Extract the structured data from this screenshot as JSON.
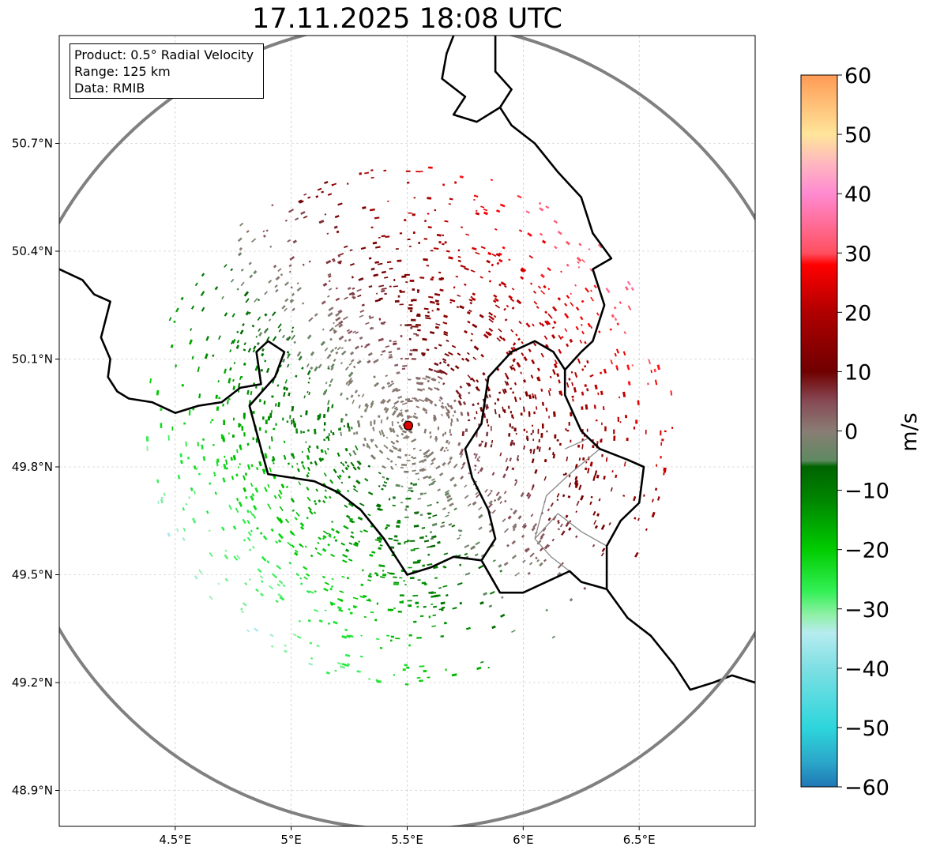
{
  "title": "17.11.2025 18:08 UTC",
  "info": {
    "product": "Product: 0.5° Radial Velocity",
    "range": "Range: 125 km",
    "source": "Data: RMIB"
  },
  "map": {
    "lon_range": [
      4.0,
      7.0
    ],
    "lat_range": [
      48.8,
      51.0
    ],
    "radar_site": {
      "lon": 5.505,
      "lat": 49.915,
      "name": "radar-site"
    },
    "range_km": 125,
    "lat_ticks": [
      {
        "value": 48.9,
        "label": "48.9°N"
      },
      {
        "value": 49.2,
        "label": "49.2°N"
      },
      {
        "value": 49.5,
        "label": "49.5°N"
      },
      {
        "value": 49.8,
        "label": "49.8°N"
      },
      {
        "value": 50.1,
        "label": "50.1°N"
      },
      {
        "value": 50.4,
        "label": "50.4°N"
      },
      {
        "value": 50.7,
        "label": "50.7°N"
      }
    ],
    "lon_ticks": [
      {
        "value": 4.5,
        "label": "4.5°E"
      },
      {
        "value": 5.0,
        "label": "5°E"
      },
      {
        "value": 5.5,
        "label": "5.5°E"
      },
      {
        "value": 6.0,
        "label": "6°E"
      },
      {
        "value": 6.5,
        "label": "6.5°E"
      }
    ],
    "borders": [
      [
        [
          4.0,
          50.35
        ],
        [
          4.1,
          50.32
        ],
        [
          4.15,
          50.28
        ],
        [
          4.22,
          50.26
        ],
        [
          4.18,
          50.16
        ],
        [
          4.22,
          50.1
        ],
        [
          4.21,
          50.05
        ],
        [
          4.25,
          50.01
        ],
        [
          4.3,
          49.99
        ],
        [
          4.4,
          49.98
        ],
        [
          4.5,
          49.95
        ],
        [
          4.6,
          49.97
        ],
        [
          4.7,
          49.98
        ],
        [
          4.78,
          50.02
        ],
        [
          4.87,
          50.03
        ],
        [
          4.85,
          50.12
        ],
        [
          4.9,
          50.15
        ],
        [
          4.97,
          50.12
        ],
        [
          4.93,
          50.05
        ],
        [
          4.82,
          49.97
        ],
        [
          4.87,
          49.85
        ],
        [
          4.9,
          49.78
        ],
        [
          5.0,
          49.77
        ],
        [
          5.1,
          49.76
        ],
        [
          5.2,
          49.73
        ],
        [
          5.3,
          49.68
        ],
        [
          5.4,
          49.6
        ],
        [
          5.45,
          49.55
        ],
        [
          5.5,
          49.5
        ],
        [
          5.6,
          49.52
        ],
        [
          5.7,
          49.55
        ],
        [
          5.82,
          49.54
        ],
        [
          5.9,
          49.45
        ],
        [
          6.0,
          49.45
        ],
        [
          6.1,
          49.48
        ],
        [
          6.2,
          49.51
        ],
        [
          6.25,
          49.48
        ],
        [
          6.36,
          49.46
        ],
        [
          6.45,
          49.38
        ],
        [
          6.55,
          49.33
        ],
        [
          6.65,
          49.25
        ],
        [
          6.72,
          49.18
        ],
        [
          6.82,
          49.2
        ],
        [
          6.9,
          49.22
        ],
        [
          7.0,
          49.2
        ]
      ],
      [
        [
          5.82,
          49.54
        ],
        [
          5.88,
          49.6
        ],
        [
          5.85,
          49.68
        ],
        [
          5.78,
          49.77
        ],
        [
          5.75,
          49.85
        ],
        [
          5.82,
          49.92
        ],
        [
          5.85,
          50.05
        ],
        [
          5.95,
          50.12
        ],
        [
          6.05,
          50.15
        ],
        [
          6.13,
          50.12
        ],
        [
          6.18,
          50.07
        ],
        [
          6.18,
          50.0
        ],
        [
          6.25,
          49.9
        ],
        [
          6.33,
          49.85
        ],
        [
          6.45,
          49.82
        ],
        [
          6.52,
          49.8
        ],
        [
          6.5,
          49.7
        ],
        [
          6.42,
          49.65
        ],
        [
          6.36,
          49.58
        ],
        [
          6.36,
          49.46
        ]
      ],
      [
        [
          6.18,
          50.07
        ],
        [
          6.25,
          50.12
        ],
        [
          6.3,
          50.15
        ],
        [
          6.35,
          50.25
        ],
        [
          6.3,
          50.35
        ],
        [
          6.38,
          50.38
        ],
        [
          6.3,
          50.45
        ],
        [
          6.25,
          50.55
        ],
        [
          6.15,
          50.62
        ],
        [
          6.05,
          50.7
        ],
        [
          5.95,
          50.75
        ],
        [
          5.9,
          50.8
        ],
        [
          5.95,
          50.85
        ],
        [
          5.88,
          50.9
        ],
        [
          5.88,
          51.0
        ]
      ],
      [
        [
          5.7,
          51.0
        ],
        [
          5.67,
          50.95
        ],
        [
          5.65,
          50.88
        ],
        [
          5.75,
          50.83
        ],
        [
          5.7,
          50.78
        ],
        [
          5.8,
          50.76
        ],
        [
          5.9,
          50.8
        ]
      ]
    ],
    "subdivisions": [
      [
        [
          6.18,
          49.85
        ],
        [
          6.25,
          49.87
        ],
        [
          6.28,
          49.88
        ]
      ],
      [
        [
          6.05,
          49.6
        ],
        [
          6.1,
          49.72
        ],
        [
          6.2,
          49.78
        ],
        [
          6.33,
          49.85
        ]
      ],
      [
        [
          6.05,
          49.6
        ],
        [
          6.15,
          49.67
        ],
        [
          6.25,
          49.62
        ],
        [
          6.36,
          49.58
        ]
      ],
      [
        [
          6.05,
          49.6
        ],
        [
          6.12,
          49.55
        ],
        [
          6.2,
          49.51
        ]
      ]
    ],
    "colorbar": {
      "label": "m/s",
      "vmin": -60,
      "vmax": 60,
      "ticks": [
        {
          "value": 60,
          "label": "60"
        },
        {
          "value": 50,
          "label": "50"
        },
        {
          "value": 40,
          "label": "40"
        },
        {
          "value": 30,
          "label": "30"
        },
        {
          "value": 20,
          "label": "20"
        },
        {
          "value": 10,
          "label": "10"
        },
        {
          "value": 0,
          "label": "0"
        },
        {
          "value": -10,
          "label": "−10"
        },
        {
          "value": -20,
          "label": "−20"
        },
        {
          "value": -30,
          "label": "−30"
        },
        {
          "value": -40,
          "label": "−40"
        },
        {
          "value": -50,
          "label": "−50"
        },
        {
          "value": -60,
          "label": "−60"
        }
      ],
      "stops": [
        {
          "value": -60,
          "color": "#1f77b4"
        },
        {
          "value": -56,
          "color": "#2ba5c9"
        },
        {
          "value": -50,
          "color": "#2dd6dc"
        },
        {
          "value": -40,
          "color": "#7edfe3"
        },
        {
          "value": -34,
          "color": "#b7ecef"
        },
        {
          "value": -31,
          "color": "#8ff0a6"
        },
        {
          "value": -27,
          "color": "#33f055"
        },
        {
          "value": -20,
          "color": "#00cc00"
        },
        {
          "value": -12,
          "color": "#008800"
        },
        {
          "value": -6,
          "color": "#006400"
        },
        {
          "value": -5,
          "color": "#5e8a60"
        },
        {
          "value": 0,
          "color": "#8a7d75"
        },
        {
          "value": 5,
          "color": "#874a55"
        },
        {
          "value": 10,
          "color": "#700000"
        },
        {
          "value": 20,
          "color": "#b00000"
        },
        {
          "value": 28,
          "color": "#ff0000"
        },
        {
          "value": 30,
          "color": "#ff5060"
        },
        {
          "value": 40,
          "color": "#ff8ad0"
        },
        {
          "value": 45,
          "color": "#ffb6c0"
        },
        {
          "value": 50,
          "color": "#ffe59a"
        },
        {
          "value": 60,
          "color": "#ff9a55"
        }
      ]
    },
    "colors": {
      "range_ring": "#808080",
      "border": "#000000",
      "subdivision": "#888888",
      "grid": "#bbbbbb",
      "site_marker": "#e00000"
    }
  }
}
